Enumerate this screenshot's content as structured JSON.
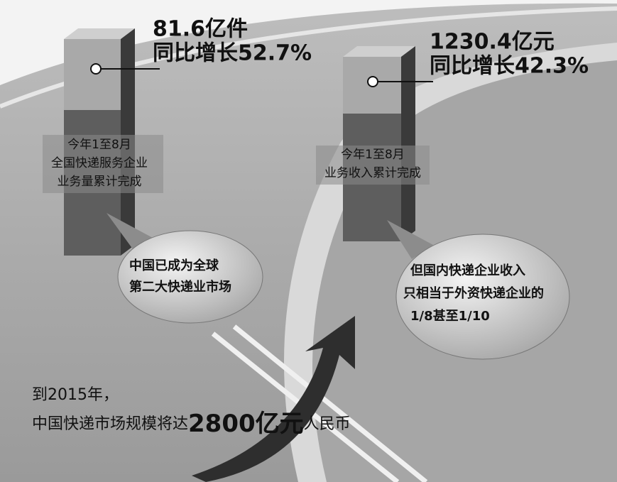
{
  "panels": [
    {
      "headline": "81.6亿件",
      "change": "同比增长52.7%",
      "caption": [
        "今年1至8月",
        "全国快递服务企业",
        "业务量累计完成"
      ],
      "bubble": [
        "中国已成为全球",
        "第二大快递业市场"
      ]
    },
    {
      "headline": "1230.4亿元",
      "change": "同比增长42.3%",
      "caption": [
        "今年1至8月",
        "业务收入累计完成"
      ],
      "bubble": [
        "但国内快递企业收入",
        "只相当于外资快递企业的",
        "1/8甚至1/10"
      ]
    }
  ],
  "footer": {
    "line1": "到2015年，",
    "prefix": "中国快递市场规模将达",
    "highlight": "2800亿元",
    "suffix": "人民币"
  }
}
